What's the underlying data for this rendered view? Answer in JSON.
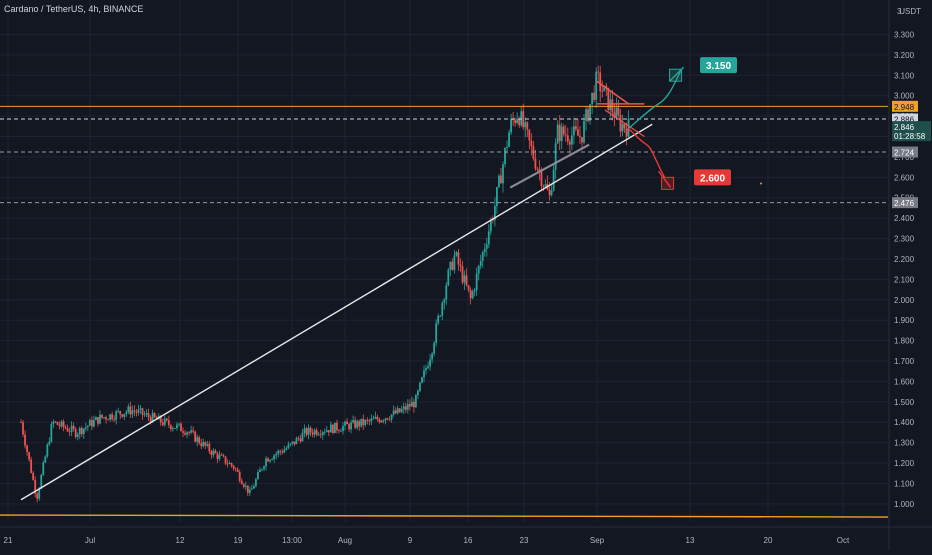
{
  "title": "Cardano / TetherUS, 4h, BINANCE",
  "currency_label": "USDT",
  "colors": {
    "background": "#131722",
    "up": "#26a69a",
    "down": "#ef5350",
    "resistance": "#f0a028",
    "trendline": "#e8e8e8",
    "target_up": "#26a69a",
    "target_down": "#e53935"
  },
  "chart_data": {
    "type": "candlestick",
    "title": "Cardano / TetherUS, 4h, BINANCE",
    "y_unit": "USDT",
    "ylim": [
      0.965,
      3.42
    ],
    "y_ticks": [
      "3.300",
      "3.200",
      "3.100",
      "3.000",
      "2.900",
      "2.800",
      "2.700",
      "2.600",
      "2.500",
      "2.400",
      "2.300",
      "2.200",
      "2.100",
      "2.000",
      "1.900",
      "1.800",
      "1.700",
      "1.600",
      "1.500",
      "1.400",
      "1.300",
      "1.200",
      "1.100",
      "1.000"
    ],
    "x_ticks": [
      "21",
      "Jul",
      "12",
      "19",
      "13:00",
      "Aug",
      "9",
      "16",
      "23",
      "Sep",
      "13",
      "20",
      "Oct"
    ],
    "price_path": [
      {
        "date": "Jun 21",
        "price": 1.4
      },
      {
        "date": "Jun 23",
        "price": 1.03
      },
      {
        "date": "Jun 25",
        "price": 1.4
      },
      {
        "date": "Jun 28",
        "price": 1.35
      },
      {
        "date": "Jul 1",
        "price": 1.42
      },
      {
        "date": "Jul 5",
        "price": 1.46
      },
      {
        "date": "Jul 9",
        "price": 1.4
      },
      {
        "date": "Jul 12",
        "price": 1.36
      },
      {
        "date": "Jul 15",
        "price": 1.26
      },
      {
        "date": "Jul 18",
        "price": 1.18
      },
      {
        "date": "Jul 20",
        "price": 1.05
      },
      {
        "date": "Jul 22",
        "price": 1.22
      },
      {
        "date": "Jul 25",
        "price": 1.28
      },
      {
        "date": "Jul 27",
        "price": 1.35
      },
      {
        "date": "Aug 1",
        "price": 1.38
      },
      {
        "date": "Aug 4",
        "price": 1.4
      },
      {
        "date": "Aug 8",
        "price": 1.45
      },
      {
        "date": "Aug 10",
        "price": 1.5
      },
      {
        "date": "Aug 12",
        "price": 1.75
      },
      {
        "date": "Aug 14",
        "price": 2.1
      },
      {
        "date": "Aug 15",
        "price": 2.22
      },
      {
        "date": "Aug 17",
        "price": 2.0
      },
      {
        "date": "Aug 18",
        "price": 2.15
      },
      {
        "date": "Aug 20",
        "price": 2.45
      },
      {
        "date": "Aug 22",
        "price": 2.85
      },
      {
        "date": "Aug 23",
        "price": 2.92
      },
      {
        "date": "Aug 25",
        "price": 2.7
      },
      {
        "date": "Aug 27",
        "price": 2.5
      },
      {
        "date": "Aug 28",
        "price": 2.82
      },
      {
        "date": "Aug 31",
        "price": 2.8
      },
      {
        "date": "Sep 2",
        "price": 3.08
      },
      {
        "date": "Sep 4",
        "price": 2.93
      },
      {
        "date": "Sep 5",
        "price": 2.86
      },
      {
        "date": "Sep 6",
        "price": 2.846
      }
    ],
    "horizontal_levels": [
      {
        "price": 2.948,
        "label": "2.948",
        "style": "solid",
        "color": "#f0a028"
      },
      {
        "price": 2.886,
        "label": "2.886",
        "style": "dashed",
        "color": "#d1d4dc"
      },
      {
        "price": 2.724,
        "label": "2.724",
        "style": "dashed",
        "color": "#9598a1"
      },
      {
        "price": 2.476,
        "label": "2.476",
        "style": "dashed",
        "color": "#9598a1"
      }
    ],
    "current_price": {
      "value": "2.846",
      "countdown": "01:28:58"
    },
    "trendlines": [
      {
        "from": {
          "date": "Jun 21",
          "price": 1.02
        },
        "to": {
          "date": "Sep 9",
          "price": 2.86
        }
      },
      {
        "from": {
          "date": "Aug 22",
          "price": 2.55
        },
        "to": {
          "date": "Sep 1",
          "price": 2.76
        }
      }
    ],
    "targets": [
      {
        "label": "3.150",
        "price": 3.15,
        "direction": "up",
        "color": "#26a69a"
      },
      {
        "label": "2.600",
        "price": 2.6,
        "direction": "down",
        "color": "#e53935"
      }
    ],
    "bottom_line": {
      "price": 0.96,
      "color": "#f0a028"
    }
  }
}
